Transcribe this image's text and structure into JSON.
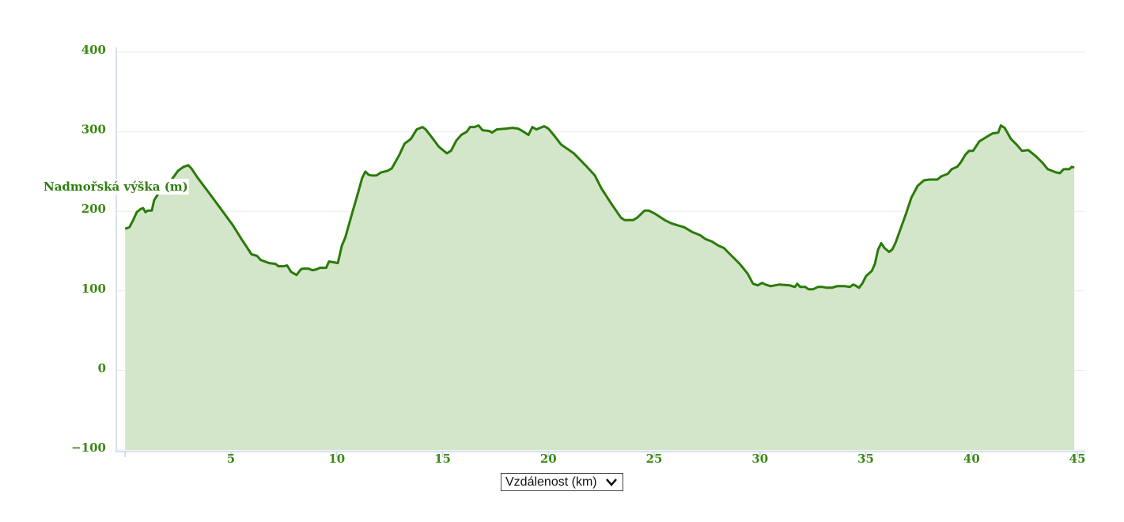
{
  "chart_data": {
    "type": "area-line",
    "y_label": "Nadmořská výška (m)",
    "x_label": "Vzdálenost (km)",
    "color": "#2b7a0b",
    "fill_color": "#d3e6c9",
    "grid": true,
    "xlim": [
      -0.42,
      45.37
    ],
    "ylim": [
      -100,
      400
    ],
    "xticks": [
      5,
      10,
      15,
      20,
      25,
      30,
      35,
      40,
      45
    ],
    "yticks": [
      400,
      300,
      200,
      100,
      0,
      {
        "value": -100,
        "label": "−100"
      }
    ],
    "x": [
      0,
      0.2,
      0.36,
      0.55,
      0.74,
      0.85,
      0.96,
      1.07,
      1.26,
      1.37,
      1.56,
      2.12,
      2.5,
      2.76,
      2.98,
      3.13,
      3.43,
      4.0,
      4.55,
      5.1,
      5.5,
      5.75,
      5.97,
      6.23,
      6.4,
      6.8,
      7.1,
      7.24,
      7.5,
      7.65,
      7.84,
      8.1,
      8.3,
      8.4,
      8.66,
      8.85,
      9.04,
      9.2,
      9.5,
      9.63,
      9.86,
      10.05,
      10.24,
      10.4,
      10.72,
      10.98,
      11.2,
      11.35,
      11.5,
      11.65,
      11.87,
      12.1,
      12.4,
      12.6,
      12.96,
      13.2,
      13.5,
      13.78,
      14.05,
      14.2,
      14.46,
      14.83,
      15.2,
      15.4,
      15.65,
      15.88,
      16.14,
      16.3,
      16.5,
      16.7,
      16.89,
      17.2,
      17.34,
      17.56,
      18.0,
      18.3,
      18.57,
      18.83,
      19.06,
      19.24,
      19.43,
      19.8,
      20.0,
      20.25,
      20.6,
      21.2,
      21.75,
      22.2,
      22.5,
      22.94,
      23.17,
      23.43,
      23.6,
      24.0,
      24.2,
      24.55,
      24.74,
      25.04,
      25.5,
      25.8,
      26.16,
      26.42,
      26.8,
      27.17,
      27.43,
      27.73,
      28.03,
      28.29,
      28.66,
      29.04,
      29.41,
      29.67,
      29.9,
      30.1,
      30.26,
      30.5,
      30.9,
      31.4,
      31.65,
      31.76,
      31.9,
      32.14,
      32.3,
      32.5,
      32.74,
      32.96,
      33.15,
      33.4,
      33.64,
      34.0,
      34.25,
      34.4,
      34.5,
      34.68,
      34.83,
      35.02,
      35.28,
      35.43,
      35.58,
      35.73,
      35.88,
      36.1,
      36.25,
      36.4,
      36.63,
      36.9,
      37.15,
      37.45,
      37.75,
      38.0,
      38.38,
      38.57,
      38.87,
      39.06,
      39.32,
      39.5,
      39.7,
      39.88,
      40.07,
      40.37,
      40.74,
      41.0,
      41.26,
      41.38,
      41.56,
      41.86,
      42.12,
      42.38,
      42.68,
      43.05,
      43.35,
      43.6,
      43.98,
      44.17,
      44.35,
      44.62,
      44.73,
      44.85
    ],
    "values": [
      178,
      180,
      188,
      199,
      203,
      204,
      199,
      201,
      201,
      214,
      222,
      237,
      251,
      256,
      258,
      254,
      242,
      222,
      202,
      182,
      165,
      155,
      146,
      144,
      139,
      135,
      134,
      131,
      131,
      132,
      124,
      120,
      127,
      128,
      128,
      126,
      127,
      129,
      129,
      137,
      136,
      135,
      157,
      167,
      197,
      221,
      242,
      250,
      246,
      245,
      245,
      249,
      251,
      254,
      271,
      285,
      291,
      303,
      306,
      303,
      294,
      281,
      273,
      276,
      289,
      296,
      300,
      306,
      306,
      308,
      302,
      301,
      299,
      303,
      304,
      305,
      304,
      300,
      296,
      306,
      303,
      307,
      304,
      296,
      284,
      273,
      258,
      245,
      229,
      211,
      202,
      192,
      189,
      189,
      192,
      201,
      201,
      197,
      189,
      185,
      182,
      180,
      174,
      170,
      165,
      162,
      157,
      154,
      144,
      134,
      122,
      109,
      107,
      110,
      108,
      106,
      108,
      107,
      105,
      109,
      105,
      105,
      102,
      102,
      105,
      105,
      104,
      104,
      106,
      106,
      105,
      108,
      107,
      104,
      109,
      119,
      125,
      134,
      152,
      160,
      154,
      149,
      152,
      160,
      177,
      197,
      217,
      232,
      239,
      240,
      240,
      244,
      247,
      253,
      256,
      262,
      271,
      276,
      276,
      288,
      294,
      298,
      299,
      308,
      305,
      291,
      284,
      276,
      277,
      269,
      261,
      253,
      249,
      248,
      253,
      253,
      256,
      255
    ]
  }
}
